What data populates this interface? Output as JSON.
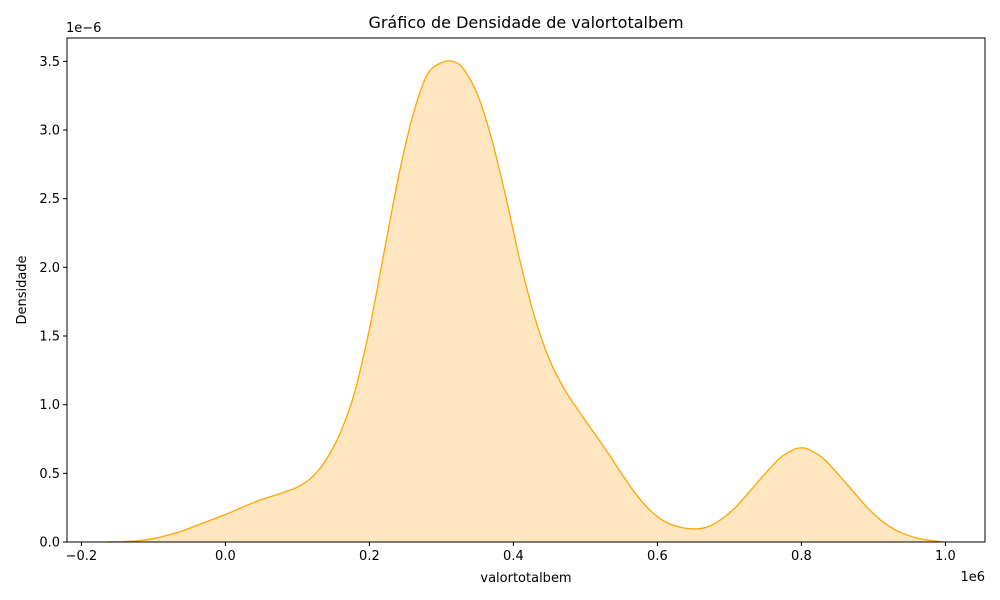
{
  "chart_data": {
    "type": "area",
    "title": "Gráfico de Densidade de valortotalbem",
    "xlabel": "valortotalbem",
    "ylabel": "Densidade",
    "x_offset_label": "1e6",
    "y_offset_label": "1e−6",
    "xlim": [
      -0.22,
      1.055
    ],
    "ylim": [
      0,
      3.67
    ],
    "x_ticks": [
      {
        "value": -0.2,
        "label": "−0.2"
      },
      {
        "value": 0.0,
        "label": "0.0"
      },
      {
        "value": 0.2,
        "label": "0.2"
      },
      {
        "value": 0.4,
        "label": "0.4"
      },
      {
        "value": 0.6,
        "label": "0.6"
      },
      {
        "value": 0.8,
        "label": "0.8"
      },
      {
        "value": 1.0,
        "label": "1.0"
      }
    ],
    "y_ticks": [
      {
        "value": 0.0,
        "label": "0.0"
      },
      {
        "value": 0.5,
        "label": "0.5"
      },
      {
        "value": 1.0,
        "label": "1.0"
      },
      {
        "value": 1.5,
        "label": "1.5"
      },
      {
        "value": 2.0,
        "label": "2.0"
      },
      {
        "value": 2.5,
        "label": "2.5"
      },
      {
        "value": 3.0,
        "label": "3.0"
      },
      {
        "value": 3.5,
        "label": "3.5"
      }
    ],
    "grid": false,
    "series": [
      {
        "line_color": "#FFA500",
        "fill_color": "#FDE6C0",
        "x": [
          -0.165,
          -0.14,
          -0.12,
          -0.1,
          -0.08,
          -0.06,
          -0.04,
          -0.02,
          0.0,
          0.02,
          0.04,
          0.06,
          0.08,
          0.1,
          0.12,
          0.14,
          0.16,
          0.18,
          0.2,
          0.22,
          0.24,
          0.26,
          0.28,
          0.3,
          0.315,
          0.33,
          0.35,
          0.37,
          0.39,
          0.41,
          0.43,
          0.45,
          0.47,
          0.49,
          0.51,
          0.53,
          0.55,
          0.57,
          0.59,
          0.61,
          0.63,
          0.65,
          0.67,
          0.69,
          0.71,
          0.73,
          0.75,
          0.77,
          0.79,
          0.8,
          0.81,
          0.83,
          0.85,
          0.87,
          0.89,
          0.91,
          0.93,
          0.95,
          0.97,
          0.995
        ],
        "y": [
          0.0,
          0.003,
          0.01,
          0.025,
          0.05,
          0.08,
          0.12,
          0.16,
          0.2,
          0.245,
          0.29,
          0.325,
          0.36,
          0.4,
          0.47,
          0.6,
          0.8,
          1.1,
          1.55,
          2.1,
          2.65,
          3.1,
          3.4,
          3.49,
          3.5,
          3.45,
          3.26,
          2.93,
          2.5,
          2.03,
          1.63,
          1.33,
          1.12,
          0.96,
          0.81,
          0.66,
          0.5,
          0.35,
          0.23,
          0.15,
          0.11,
          0.095,
          0.11,
          0.17,
          0.26,
          0.38,
          0.5,
          0.61,
          0.675,
          0.685,
          0.675,
          0.61,
          0.5,
          0.38,
          0.26,
          0.16,
          0.09,
          0.045,
          0.018,
          0.002
        ]
      }
    ]
  }
}
